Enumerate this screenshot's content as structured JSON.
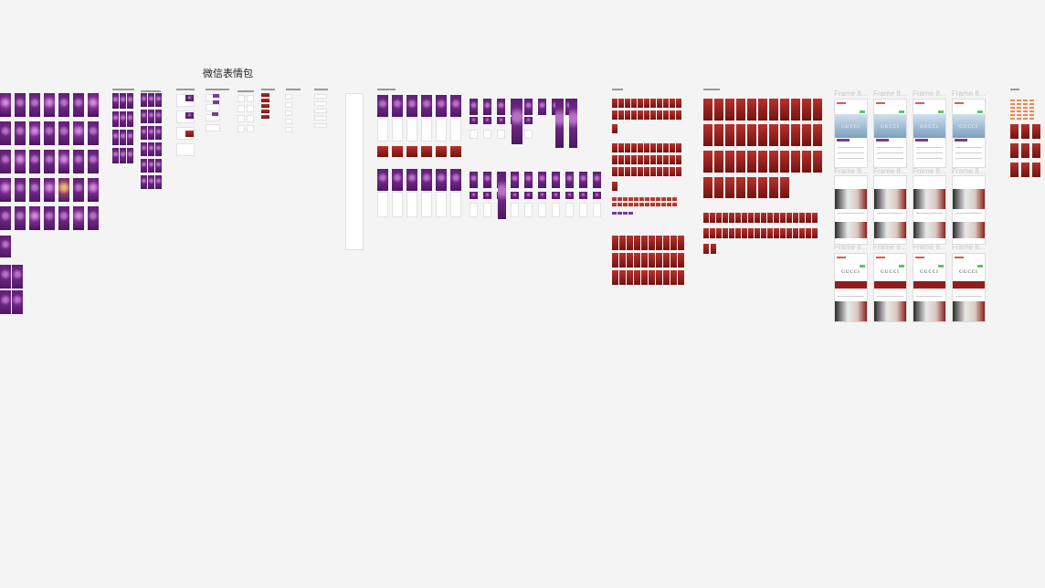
{
  "canvas": {
    "title": "微信表情包"
  },
  "frame_labels": [
    "Frame 8...",
    "Frame 8...",
    "Frame 8...",
    "Frame 8..."
  ],
  "colors": {
    "background": "#f4f4f4",
    "purple": "#6b2680",
    "red": "#8e1f1c",
    "orange": "#f0884a",
    "green": "#5fc46a"
  }
}
